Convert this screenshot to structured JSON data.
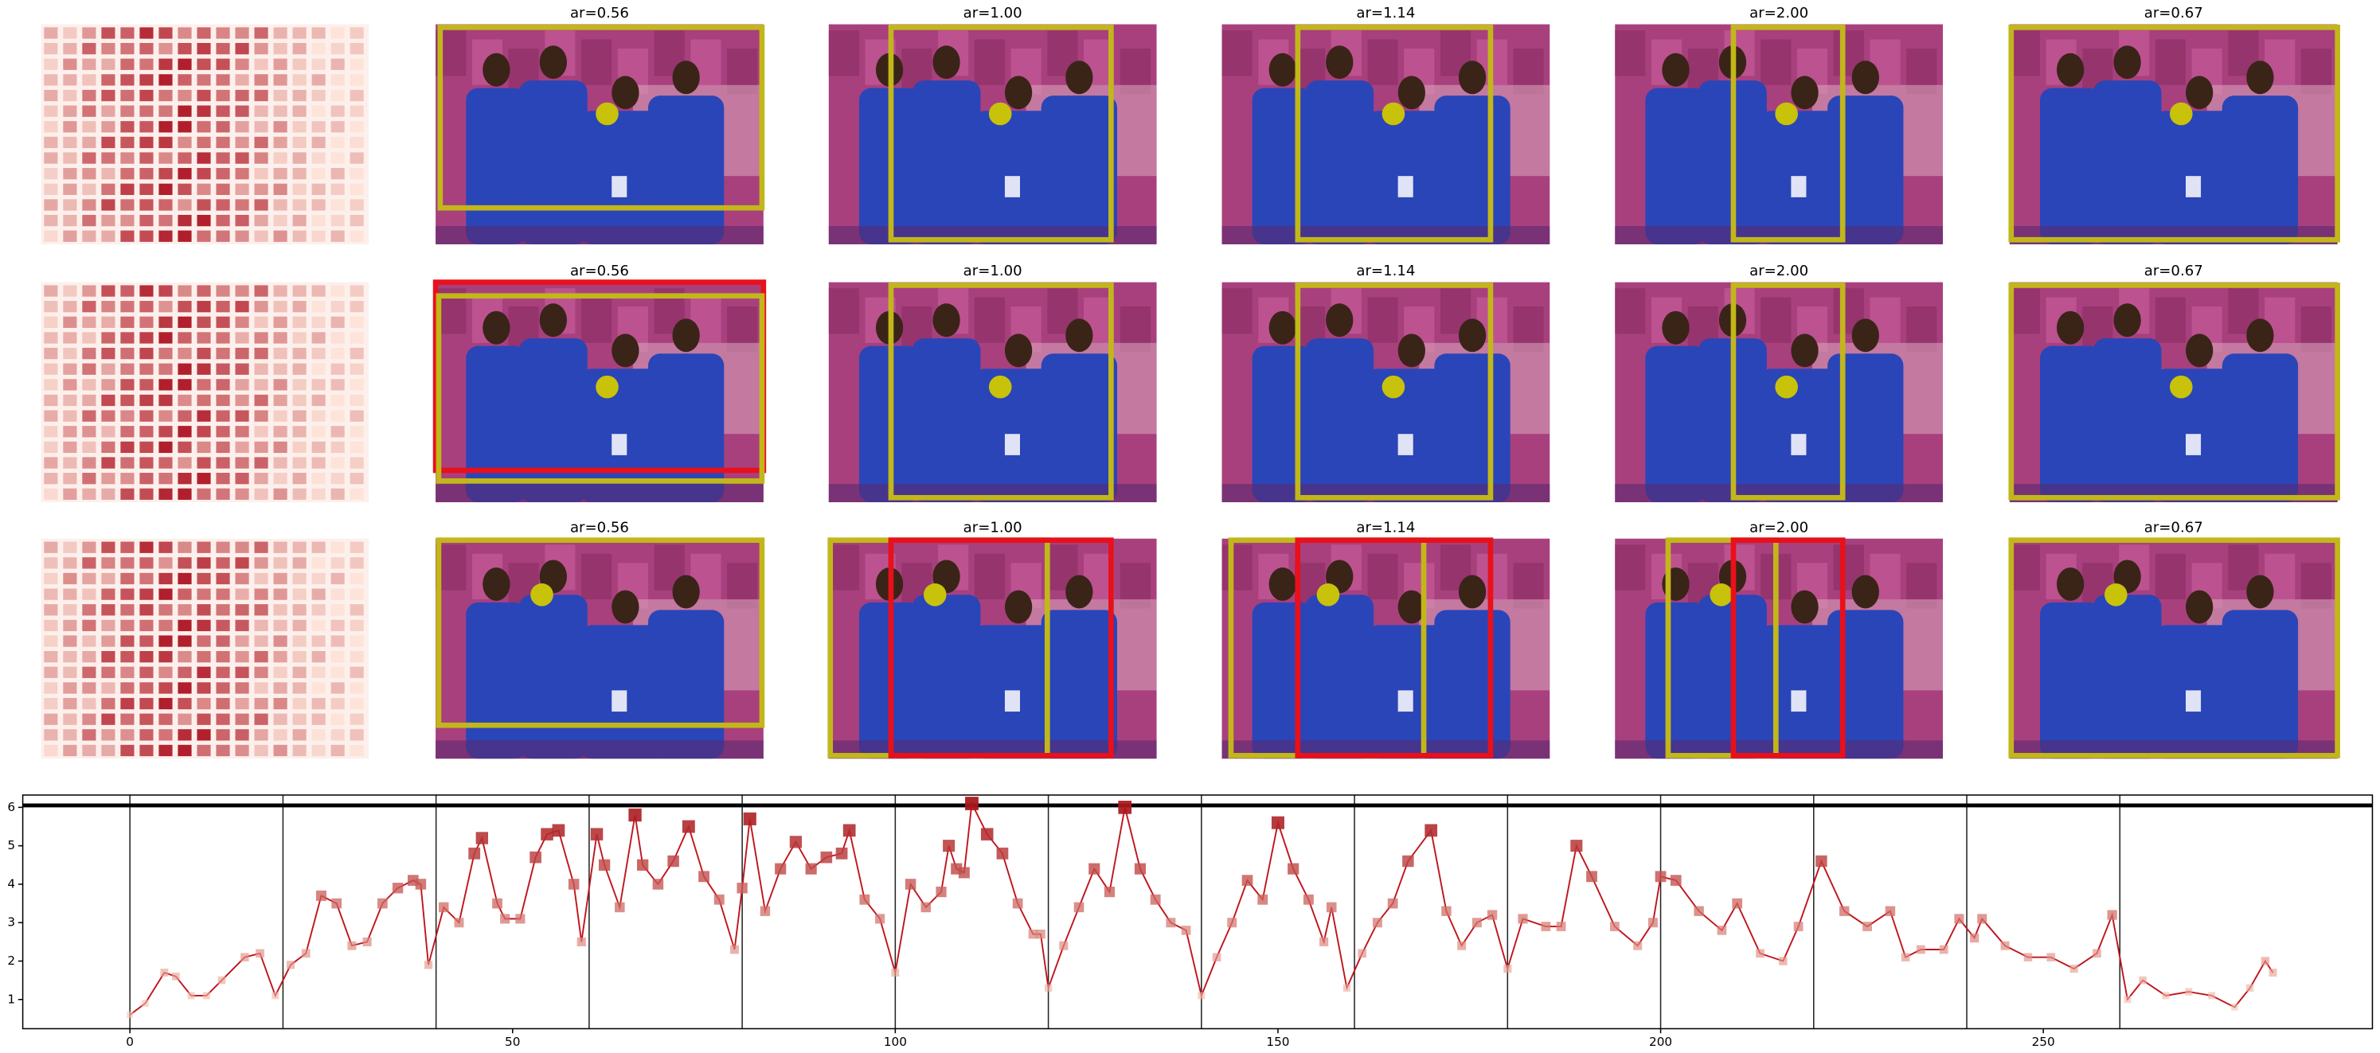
{
  "panel_titles": [
    [
      "ar=0.56",
      "ar=1.00",
      "ar=1.14",
      "ar=2.00",
      "ar=0.67"
    ],
    [
      "ar=0.56",
      "ar=1.00",
      "ar=1.14",
      "ar=2.00",
      "ar=0.67"
    ],
    [
      "ar=0.56",
      "ar=1.00",
      "ar=1.14",
      "ar=2.00",
      "ar=0.67"
    ]
  ],
  "chart_data": {
    "type": "line",
    "x": [
      0,
      2,
      4.5,
      6,
      8,
      10,
      12,
      15,
      17,
      19,
      21,
      23,
      25,
      27,
      29,
      31,
      33,
      35,
      37,
      38,
      39,
      41,
      43,
      45,
      46,
      48,
      49,
      51,
      53,
      54.5,
      56,
      58,
      59,
      61,
      62,
      64,
      66,
      67,
      69,
      71,
      73,
      75,
      77,
      79,
      80,
      81,
      83,
      85,
      87,
      89,
      91,
      93,
      94,
      96,
      98,
      100,
      102,
      104,
      106,
      107,
      108,
      109,
      110,
      112,
      114,
      116,
      118,
      119,
      120,
      122,
      124,
      126,
      128,
      130,
      132,
      134,
      136,
      138,
      140,
      142,
      144,
      146,
      148,
      150,
      152,
      154,
      156,
      157,
      159,
      161,
      163,
      165,
      167,
      170,
      172,
      174,
      176,
      178,
      180,
      182,
      185,
      187,
      189,
      191,
      194,
      197,
      199,
      200,
      202,
      205,
      208,
      210,
      213,
      216,
      218,
      221,
      224,
      227,
      230,
      232,
      234,
      237,
      239,
      241,
      242,
      245,
      248,
      251,
      254,
      257,
      259,
      261,
      263,
      266,
      269,
      272,
      275,
      277,
      279,
      280
    ],
    "series": [
      {
        "color": "#c0141c",
        "values": [
          0.6,
          0.9,
          1.7,
          1.6,
          1.1,
          1.1,
          1.5,
          2.1,
          2.2,
          1.1,
          1.9,
          2.2,
          3.7,
          3.5,
          2.4,
          2.5,
          3.5,
          3.9,
          4.1,
          4.0,
          1.9,
          3.4,
          3.0,
          4.8,
          5.2,
          3.5,
          3.1,
          3.1,
          4.7,
          5.3,
          5.4,
          4.0,
          2.5,
          5.3,
          4.5,
          3.4,
          5.8,
          4.5,
          4.0,
          4.6,
          5.5,
          4.2,
          3.6,
          2.3,
          3.9,
          5.7,
          3.3,
          4.4,
          5.1,
          4.4,
          4.7,
          4.8,
          5.4,
          3.6,
          3.1,
          1.7,
          4.0,
          3.4,
          3.8,
          5.0,
          4.4,
          4.3,
          6.1,
          5.3,
          4.8,
          3.5,
          2.7,
          2.7,
          1.3,
          2.4,
          3.4,
          4.4,
          3.8,
          6.0,
          4.4,
          3.6,
          3.0,
          2.8,
          1.1,
          2.1,
          3.0,
          4.1,
          3.6,
          5.6,
          4.4,
          3.6,
          2.5,
          3.4,
          1.3,
          2.2,
          3.0,
          3.5,
          4.6,
          5.4,
          3.3,
          2.4,
          3.0,
          3.2,
          1.8,
          3.1,
          2.9,
          2.9,
          5.0,
          4.2,
          2.9,
          2.4,
          3.0,
          4.2,
          4.1,
          3.3,
          2.8,
          3.5,
          2.2,
          2.0,
          2.9,
          4.6,
          3.3,
          2.9,
          3.3,
          2.1,
          2.3,
          2.3,
          3.1,
          2.6,
          3.1,
          2.4,
          2.1,
          2.1,
          1.8,
          2.2,
          3.2,
          1.0,
          1.5,
          1.1,
          1.2,
          1.1,
          0.8,
          1.3,
          2.0,
          1.7
        ]
      }
    ],
    "colormap": [
      "#fdd0bd",
      "#a50f15"
    ],
    "xlim": [
      -14,
      293
    ],
    "ylim": [
      0.24,
      6.32
    ],
    "xticks": [
      0,
      50,
      100,
      150,
      200,
      250
    ],
    "yticks": [
      1,
      2,
      3,
      4,
      5,
      6
    ],
    "vlines": [
      0,
      20,
      40,
      60,
      80,
      100,
      120,
      140,
      160,
      180,
      200,
      220,
      240,
      260
    ],
    "hline": 6.05
  }
}
